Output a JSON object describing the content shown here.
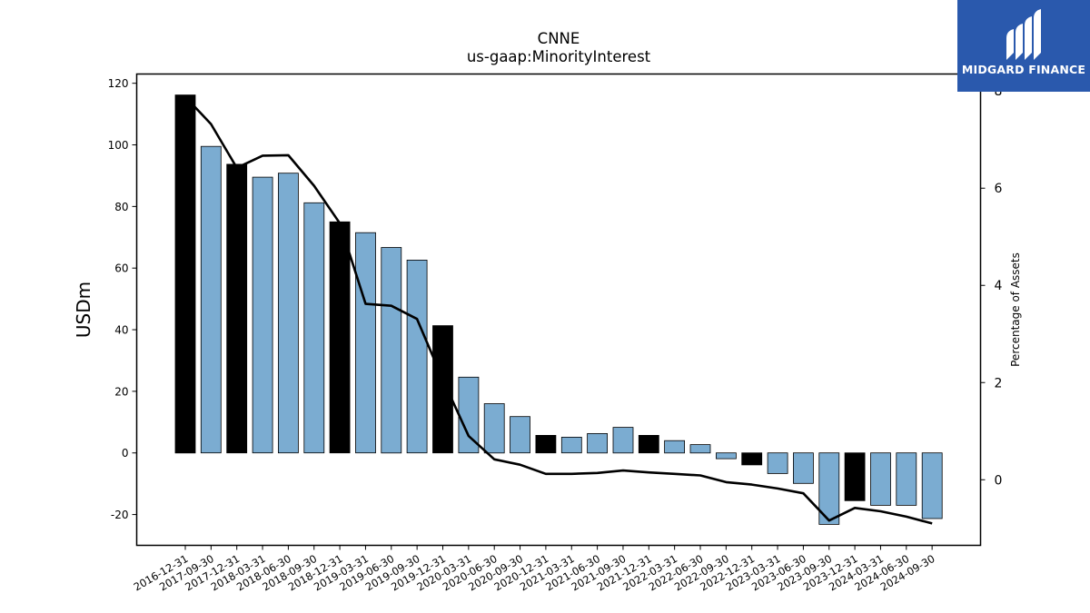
{
  "chart_data": {
    "type": "bar",
    "title": "CNNE",
    "subtitle": "us-gaap:MinorityInterest",
    "ylabel": "USDm",
    "ylabel_right": "Percentage of Assets",
    "ylim": [
      -30,
      123
    ],
    "ylim_right": [
      -1.35,
      8.35
    ],
    "yticks": [
      -20,
      0,
      20,
      40,
      60,
      80,
      100,
      120
    ],
    "yticks_right": [
      0,
      2,
      4,
      6,
      8
    ],
    "grid": false,
    "categories": [
      "2016-12-31",
      "2017-09-30",
      "2017-12-31",
      "2018-03-31",
      "2018-06-30",
      "2018-09-30",
      "2018-12-31",
      "2019-03-31",
      "2019-06-30",
      "2019-09-30",
      "2019-12-31",
      "2020-03-31",
      "2020-06-30",
      "2020-09-30",
      "2020-12-31",
      "2021-03-31",
      "2021-06-30",
      "2021-09-30",
      "2021-12-31",
      "2022-03-31",
      "2022-06-30",
      "2022-09-30",
      "2022-12-31",
      "2023-03-31",
      "2023-06-30",
      "2023-09-30",
      "2023-12-31",
      "2024-03-31",
      "2024-06-30",
      "2024-09-30"
    ],
    "series": [
      {
        "axis": "left",
        "kind": "bar",
        "values": [
          116.2,
          99.5,
          93.7,
          89.5,
          90.8,
          81.2,
          75.0,
          71.5,
          66.7,
          62.6,
          41.3,
          24.6,
          16.0,
          11.8,
          5.7,
          5.1,
          6.3,
          8.3,
          5.7,
          4.0,
          2.7,
          -1.9,
          -3.9,
          -6.7,
          -9.9,
          -23.2,
          -15.5,
          -17.0,
          -17.0,
          -21.3
        ],
        "highlight_quarter_end": "12-31"
      },
      {
        "axis": "right",
        "kind": "line",
        "values": [
          7.88,
          7.32,
          6.42,
          6.67,
          6.68,
          6.05,
          5.28,
          3.62,
          3.58,
          3.31,
          2.06,
          0.9,
          0.42,
          0.31,
          0.12,
          0.12,
          0.14,
          0.19,
          0.15,
          0.12,
          0.09,
          -0.05,
          -0.1,
          -0.18,
          -0.28,
          -0.84,
          -0.58,
          -0.65,
          -0.76,
          -0.9
        ]
      }
    ],
    "colors": {
      "bar_default": "#7bacd1",
      "bar_highlight": "#000000",
      "line": "#000000"
    }
  },
  "logo": {
    "text": "MIDGARD FINANCE",
    "background": "#2a59ad",
    "name": "midgard-logo-icon"
  }
}
